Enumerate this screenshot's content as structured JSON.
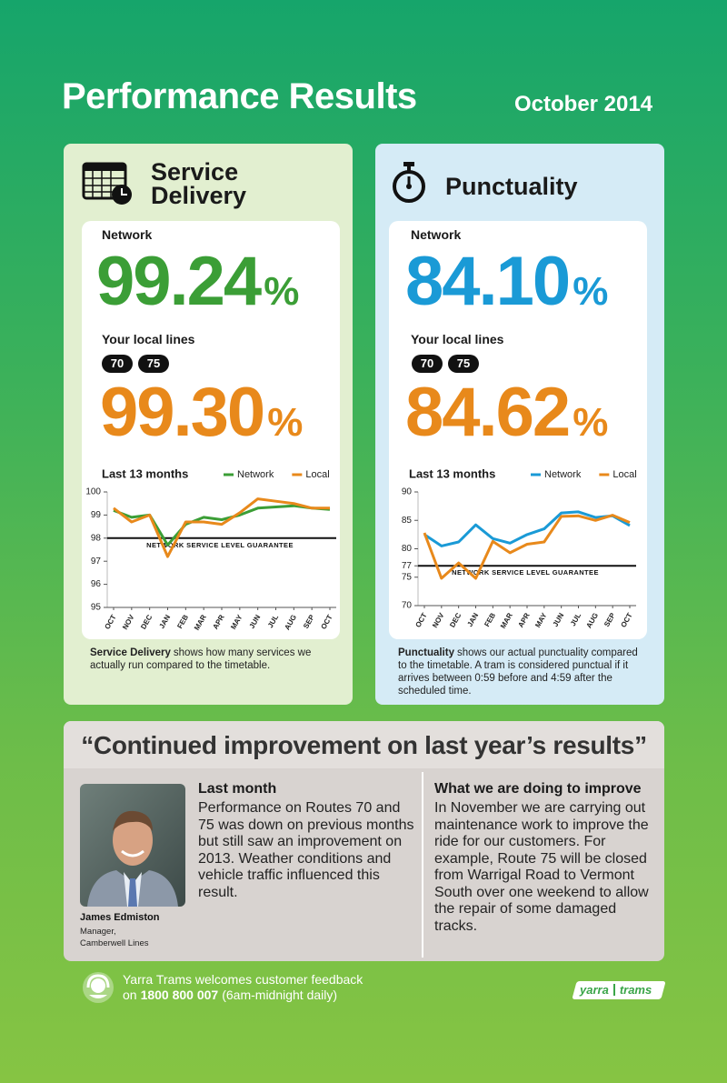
{
  "header": {
    "title": "Performance Results",
    "date": "October 2014"
  },
  "panels": [
    {
      "title_lines": [
        "Service",
        "Delivery"
      ],
      "network_label": "Network",
      "network_value": "99.24",
      "unit": "%",
      "local_label": "Your local lines",
      "routes": [
        "70",
        "75"
      ],
      "local_value": "99.30",
      "description_bold": "Service Delivery",
      "description": "shows how many services we actually run compared to the timetable."
    },
    {
      "title_lines": [
        "Punctuality"
      ],
      "network_label": "Network",
      "network_value": "84.10",
      "unit": "%",
      "local_label": "Your local lines",
      "routes": [
        "70",
        "75"
      ],
      "local_value": "84.62",
      "description_bold": "Punctuality",
      "description": "shows our actual punctuality compared to the timetable. A tram is considered punctual if it arrives between 0:59 before and 4:59 after the scheduled time."
    }
  ],
  "chart_data": [
    {
      "type": "line",
      "title": "Last 13 months",
      "categories": [
        "OCT",
        "NOV",
        "DEC",
        "JAN",
        "FEB",
        "MAR",
        "APR",
        "MAY",
        "JUN",
        "JUL",
        "AUG",
        "SEP",
        "OCT"
      ],
      "series": [
        {
          "name": "Network",
          "color": "#3b9e36",
          "values": [
            99.2,
            98.9,
            99.0,
            97.7,
            98.6,
            98.9,
            98.8,
            99.0,
            99.3,
            99.35,
            99.4,
            99.3,
            99.24
          ]
        },
        {
          "name": "Local",
          "color": "#e8891b",
          "values": [
            99.3,
            98.7,
            99.0,
            97.2,
            98.7,
            98.7,
            98.6,
            99.1,
            99.7,
            99.6,
            99.5,
            99.3,
            99.3
          ]
        }
      ],
      "ylim": [
        95,
        100
      ],
      "yticks": [
        95,
        96,
        97,
        98,
        99,
        100
      ],
      "guarantee": {
        "value": 98,
        "label": "NETWORK SERVICE LEVEL GUARANTEE"
      }
    },
    {
      "type": "line",
      "title": "Last 13 months",
      "categories": [
        "OCT",
        "NOV",
        "DEC",
        "JAN",
        "FEB",
        "MAR",
        "APR",
        "MAY",
        "JUN",
        "JUL",
        "AUG",
        "SEP",
        "OCT"
      ],
      "series": [
        {
          "name": "Network",
          "color": "#1a9ad6",
          "values": [
            82.5,
            80.5,
            81.2,
            84.2,
            81.8,
            81.0,
            82.5,
            83.5,
            86.3,
            86.5,
            85.5,
            85.8,
            84.1
          ]
        },
        {
          "name": "Local",
          "color": "#e8891b",
          "values": [
            82.8,
            74.8,
            77.5,
            74.8,
            81.3,
            79.3,
            80.8,
            81.2,
            85.7,
            85.8,
            85.0,
            85.9,
            84.62
          ]
        }
      ],
      "ylim": [
        70,
        90
      ],
      "yticks": [
        70,
        75,
        77,
        80,
        85,
        90
      ],
      "guarantee": {
        "value": 77,
        "label": "NETWORK SERVICE LEVEL GUARANTEE"
      }
    }
  ],
  "quote": {
    "text": "“Continued improvement on last year’s results”",
    "person": {
      "name": "James Edmiston",
      "role_lines": [
        "Manager,",
        "Camberwell Lines"
      ]
    },
    "last_month": {
      "heading": "Last month",
      "body": "Performance on Routes 70 and 75 was down on previous months but still saw an improvement on 2013. Weather conditions and vehicle traffic influenced this result."
    },
    "improve": {
      "heading": "What we are doing to improve",
      "body": "In November we are carrying out maintenance work to improve the ride for our customers. For example, Route 75 will be closed from Warrigal Road to Vermont South over one weekend to allow the repair of some damaged tracks."
    }
  },
  "footer": {
    "line1": "Yarra Trams welcomes customer feedback",
    "line2_prefix": "on",
    "phone": "1800 800 007",
    "line2_suffix": "(6am-midnight daily)",
    "logo": [
      "yarra",
      "trams"
    ]
  }
}
